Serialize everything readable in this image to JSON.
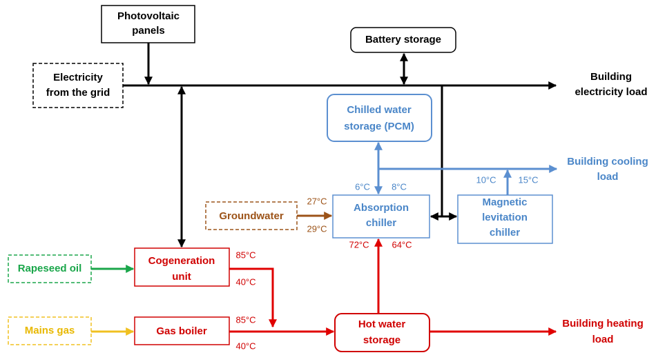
{
  "nodes": [
    {
      "lines": [
        "Photovoltaic",
        "panels"
      ]
    },
    {
      "lines": [
        "Battery storage"
      ]
    },
    {
      "lines": [
        "Electricity",
        "from the grid"
      ]
    },
    {
      "lines": [
        "Building",
        "electricity load"
      ]
    },
    {
      "lines": [
        "Chilled water",
        "storage (PCM)"
      ]
    },
    {
      "lines": [
        "Building cooling",
        "load"
      ]
    },
    {
      "lines": [
        "Groundwater"
      ]
    },
    {
      "lines": [
        "Absorption",
        "chiller"
      ]
    },
    {
      "lines": [
        "Magnetic",
        "levitation",
        "chiller"
      ]
    },
    {
      "lines": [
        "Rapeseed oil"
      ]
    },
    {
      "lines": [
        "Cogeneration",
        "unit"
      ]
    },
    {
      "lines": [
        "Gas boiler"
      ]
    },
    {
      "lines": [
        "Mains gas"
      ]
    },
    {
      "lines": [
        "Hot water",
        "storage"
      ]
    },
    {
      "lines": [
        "Building heating",
        "load"
      ]
    }
  ],
  "temperatures": [
    "6°C",
    "8°C",
    "10°C",
    "15°C",
    "27°C",
    "29°C",
    "72°C",
    "64°C",
    "85°C",
    "40°C",
    "85°C",
    "40°C"
  ]
}
